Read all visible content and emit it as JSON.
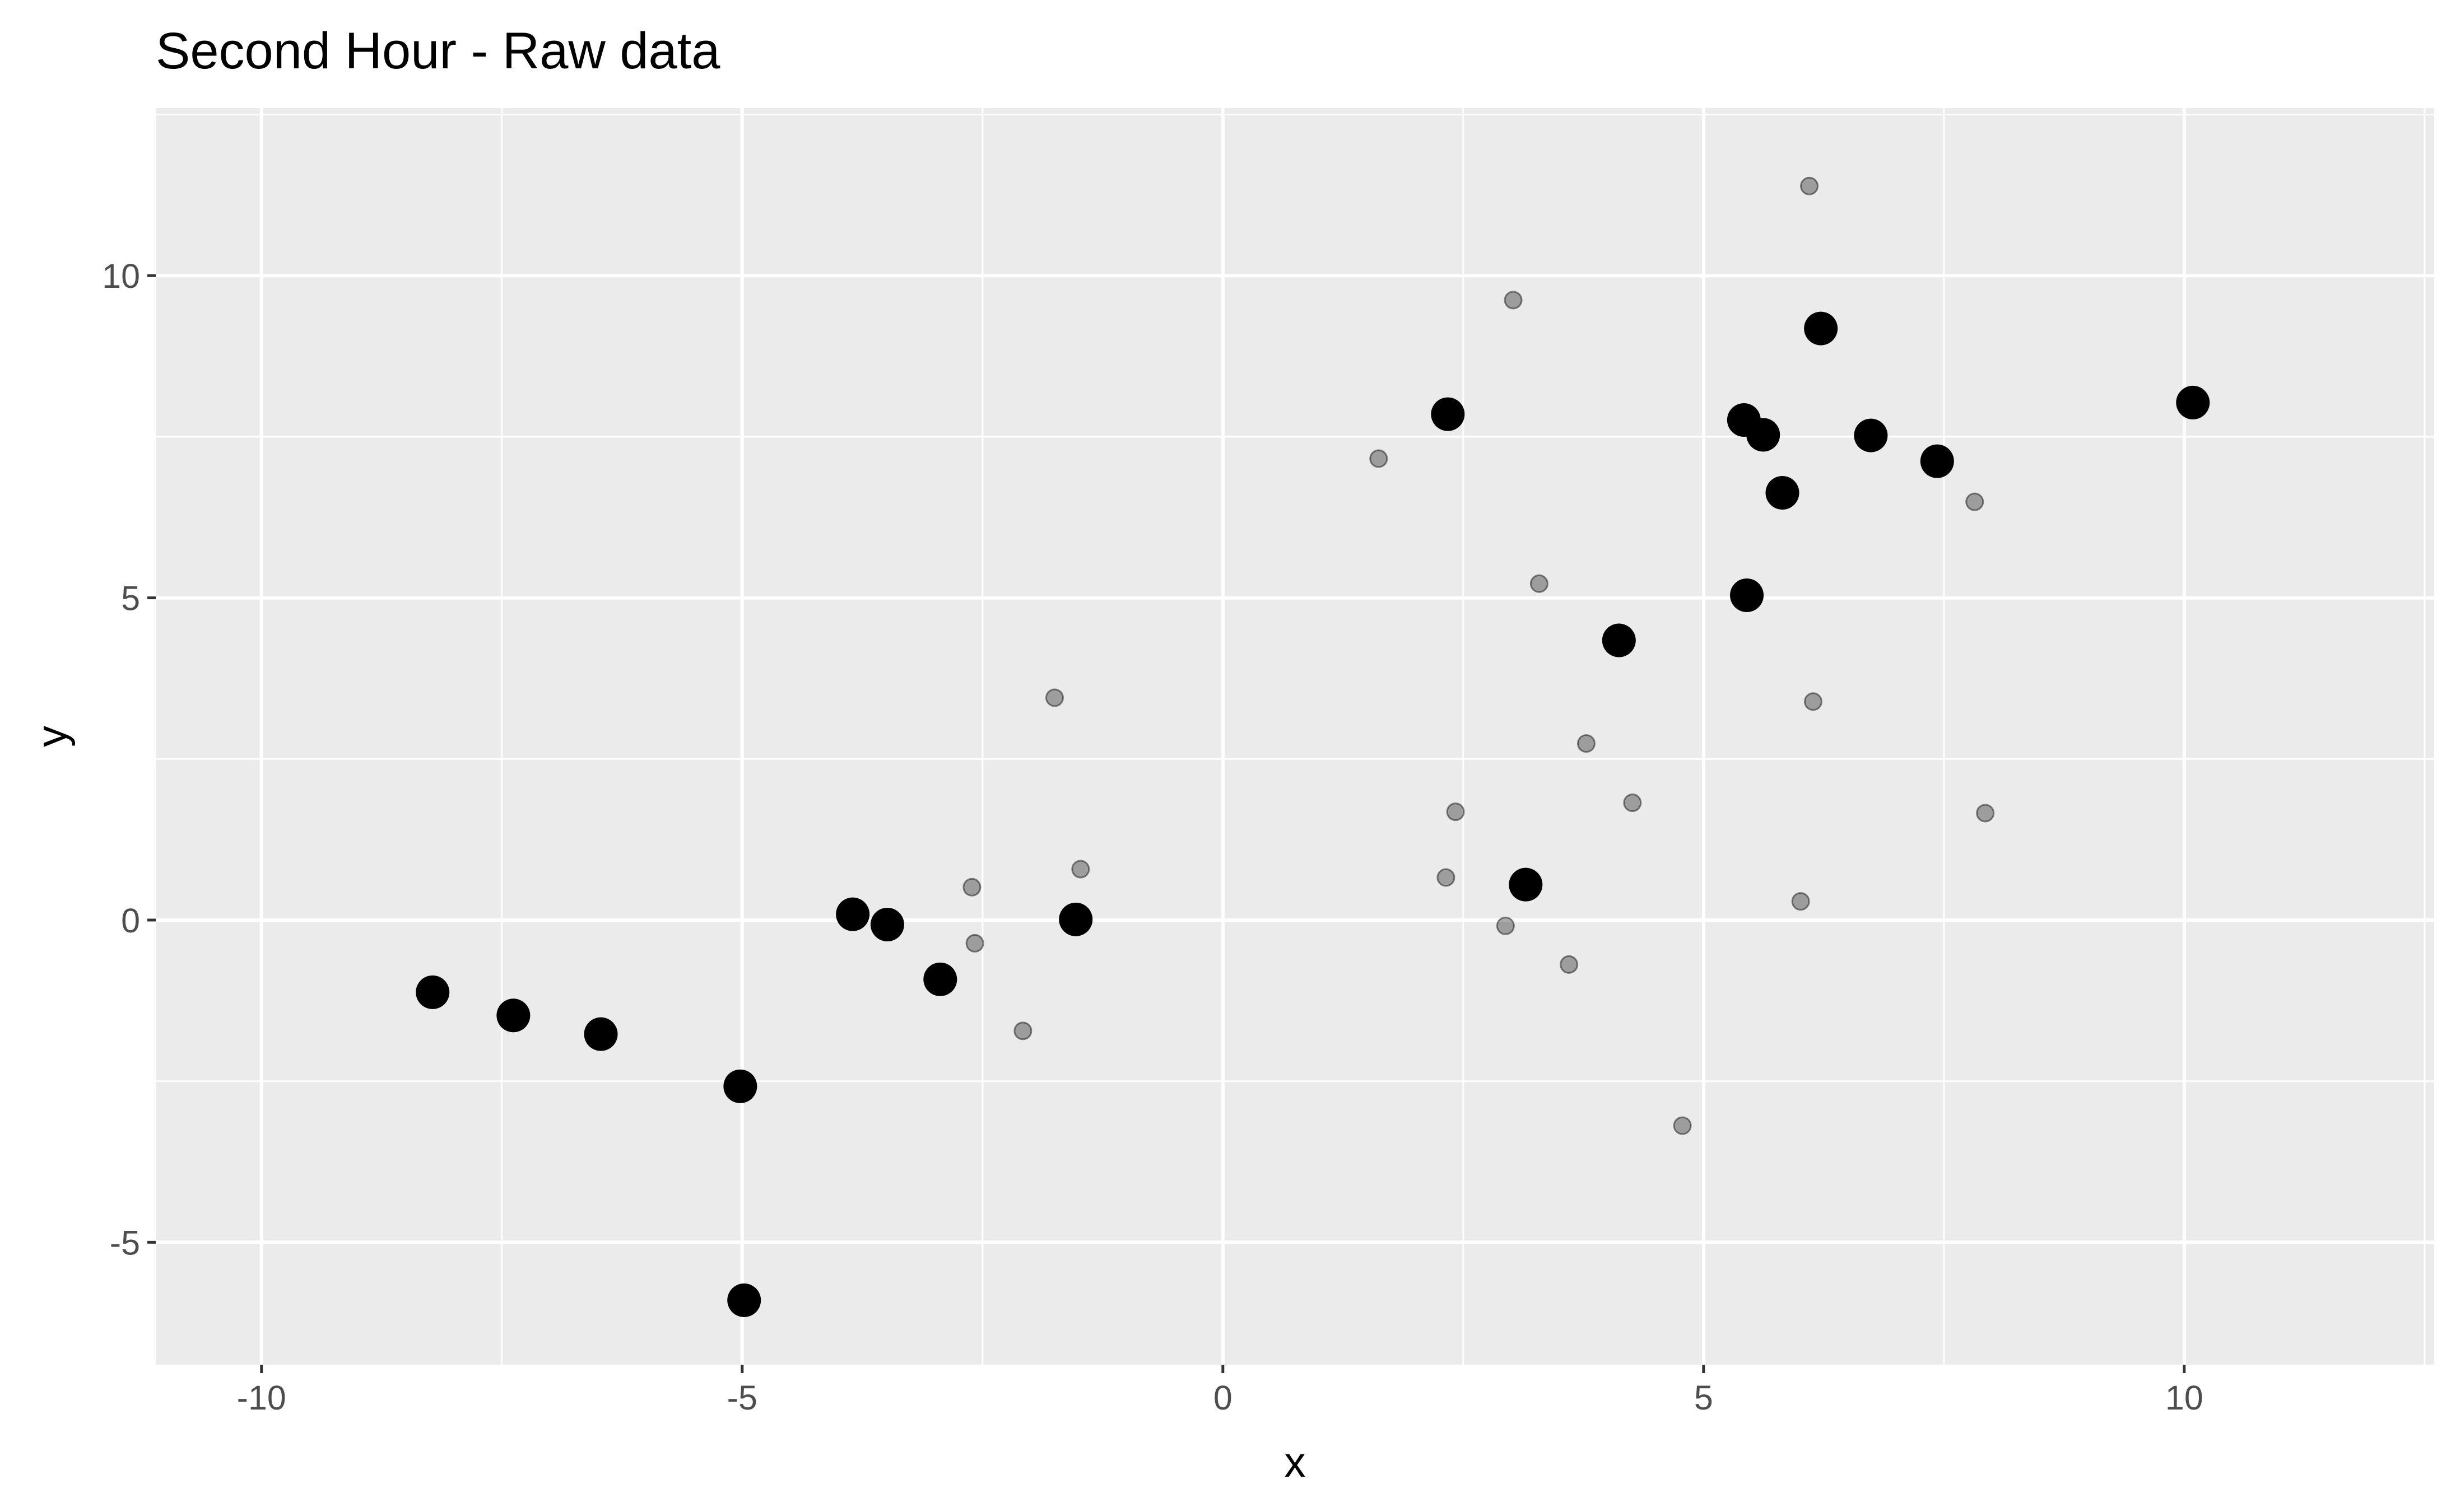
{
  "chart_data": {
    "type": "scatter",
    "title": "Second Hour - Raw data",
    "xlabel": "x",
    "ylabel": "y",
    "xlim": [
      -11.1,
      12.6
    ],
    "ylim": [
      -6.9,
      12.6
    ],
    "grid": true,
    "legend": "none",
    "x_ticks": [
      {
        "value": -10,
        "label": "-10"
      },
      {
        "value": -5,
        "label": "-5"
      },
      {
        "value": 0,
        "label": "0"
      },
      {
        "value": 5,
        "label": "5"
      },
      {
        "value": 10,
        "label": "10"
      }
    ],
    "y_ticks": [
      {
        "value": -5,
        "label": "-5"
      },
      {
        "value": 0,
        "label": "0"
      },
      {
        "value": 5,
        "label": "5"
      },
      {
        "value": 10,
        "label": "10"
      }
    ],
    "series": [
      {
        "color": "#000000",
        "marker": "large-opaque",
        "points": [
          {
            "x": -8.22,
            "y": -1.12
          },
          {
            "x": -7.38,
            "y": -1.48
          },
          {
            "x": -6.47,
            "y": -1.77
          },
          {
            "x": -5.02,
            "y": -2.58
          },
          {
            "x": -4.98,
            "y": -5.9
          },
          {
            "x": -3.85,
            "y": 0.09
          },
          {
            "x": -3.49,
            "y": -0.07
          },
          {
            "x": -2.94,
            "y": -0.92
          },
          {
            "x": -1.53,
            "y": 0.01
          },
          {
            "x": 2.34,
            "y": 7.85
          },
          {
            "x": 3.15,
            "y": 0.55
          },
          {
            "x": 4.12,
            "y": 4.34
          },
          {
            "x": 5.42,
            "y": 7.76
          },
          {
            "x": 5.45,
            "y": 5.04
          },
          {
            "x": 5.62,
            "y": 7.53
          },
          {
            "x": 5.82,
            "y": 6.63
          },
          {
            "x": 6.22,
            "y": 9.18
          },
          {
            "x": 6.74,
            "y": 7.52
          },
          {
            "x": 7.43,
            "y": 7.12
          },
          {
            "x": 10.09,
            "y": 8.03
          }
        ]
      },
      {
        "color": "#000000",
        "marker": "small-translucent",
        "points": [
          {
            "x": -2.61,
            "y": 0.51
          },
          {
            "x": -2.58,
            "y": -0.36
          },
          {
            "x": -2.08,
            "y": -1.72
          },
          {
            "x": -1.75,
            "y": 3.45
          },
          {
            "x": -1.48,
            "y": 0.79
          },
          {
            "x": 1.62,
            "y": 7.16
          },
          {
            "x": 2.32,
            "y": 0.66
          },
          {
            "x": 2.42,
            "y": 1.68
          },
          {
            "x": 2.94,
            "y": -0.09
          },
          {
            "x": 3.02,
            "y": 9.62
          },
          {
            "x": 3.29,
            "y": 5.22
          },
          {
            "x": 3.6,
            "y": -0.69
          },
          {
            "x": 3.78,
            "y": 2.74
          },
          {
            "x": 4.26,
            "y": 1.82
          },
          {
            "x": 4.78,
            "y": -3.19
          },
          {
            "x": 6.01,
            "y": 0.29
          },
          {
            "x": 6.1,
            "y": 11.39
          },
          {
            "x": 6.14,
            "y": 3.39
          },
          {
            "x": 7.82,
            "y": 6.49
          },
          {
            "x": 7.93,
            "y": 1.66
          }
        ]
      }
    ]
  }
}
